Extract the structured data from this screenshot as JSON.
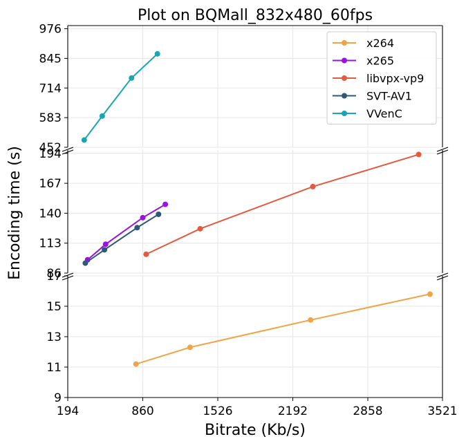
{
  "chart_data": {
    "type": "line",
    "title": "Plot on BQMall_832x480_60fps",
    "xlabel": "Bitrate (Kb/s)",
    "ylabel": "Encoding time (s)",
    "xlim": [
      194,
      3521
    ],
    "x_ticks": [
      "194",
      "860",
      "1526",
      "2192",
      "2858",
      "3521"
    ],
    "grid": true,
    "legend_position": "top-right",
    "panels": [
      {
        "name": "top",
        "ylim": [
          452,
          990
        ],
        "y_ticks": [
          "452",
          "583",
          "714",
          "845",
          "976"
        ]
      },
      {
        "name": "middle",
        "ylim": [
          86,
          197
        ],
        "y_ticks": [
          "86",
          "113",
          "140",
          "167",
          "194"
        ]
      },
      {
        "name": "bottom",
        "ylim": [
          9,
          17
        ],
        "y_ticks": [
          "9",
          "11",
          "13",
          "15",
          "17"
        ]
      }
    ],
    "series": [
      {
        "name": "x264",
        "color": "#f2a444",
        "panel": "bottom",
        "x": [
          800,
          1280,
          2350,
          3410
        ],
        "y": [
          11.2,
          12.3,
          14.1,
          15.8
        ]
      },
      {
        "name": "x265",
        "color": "#9a11e0",
        "panel": "middle",
        "x": [
          370,
          530,
          860,
          1060
        ],
        "y": [
          98,
          112,
          136,
          148
        ]
      },
      {
        "name": "libvpx-vp9",
        "color": "#e45a3e",
        "panel": "middle",
        "x": [
          890,
          1370,
          2370,
          3310
        ],
        "y": [
          103,
          126,
          164,
          193
        ]
      },
      {
        "name": "SVT-AV1",
        "color": "#2e5878",
        "panel": "middle",
        "x": [
          350,
          520,
          810,
          1000
        ],
        "y": [
          95,
          107,
          127,
          139
        ]
      },
      {
        "name": "VVenC",
        "color": "#16a7b3",
        "panel": "top",
        "x": [
          340,
          500,
          760,
          990
        ],
        "y": [
          484,
          590,
          758,
          865
        ]
      }
    ]
  }
}
